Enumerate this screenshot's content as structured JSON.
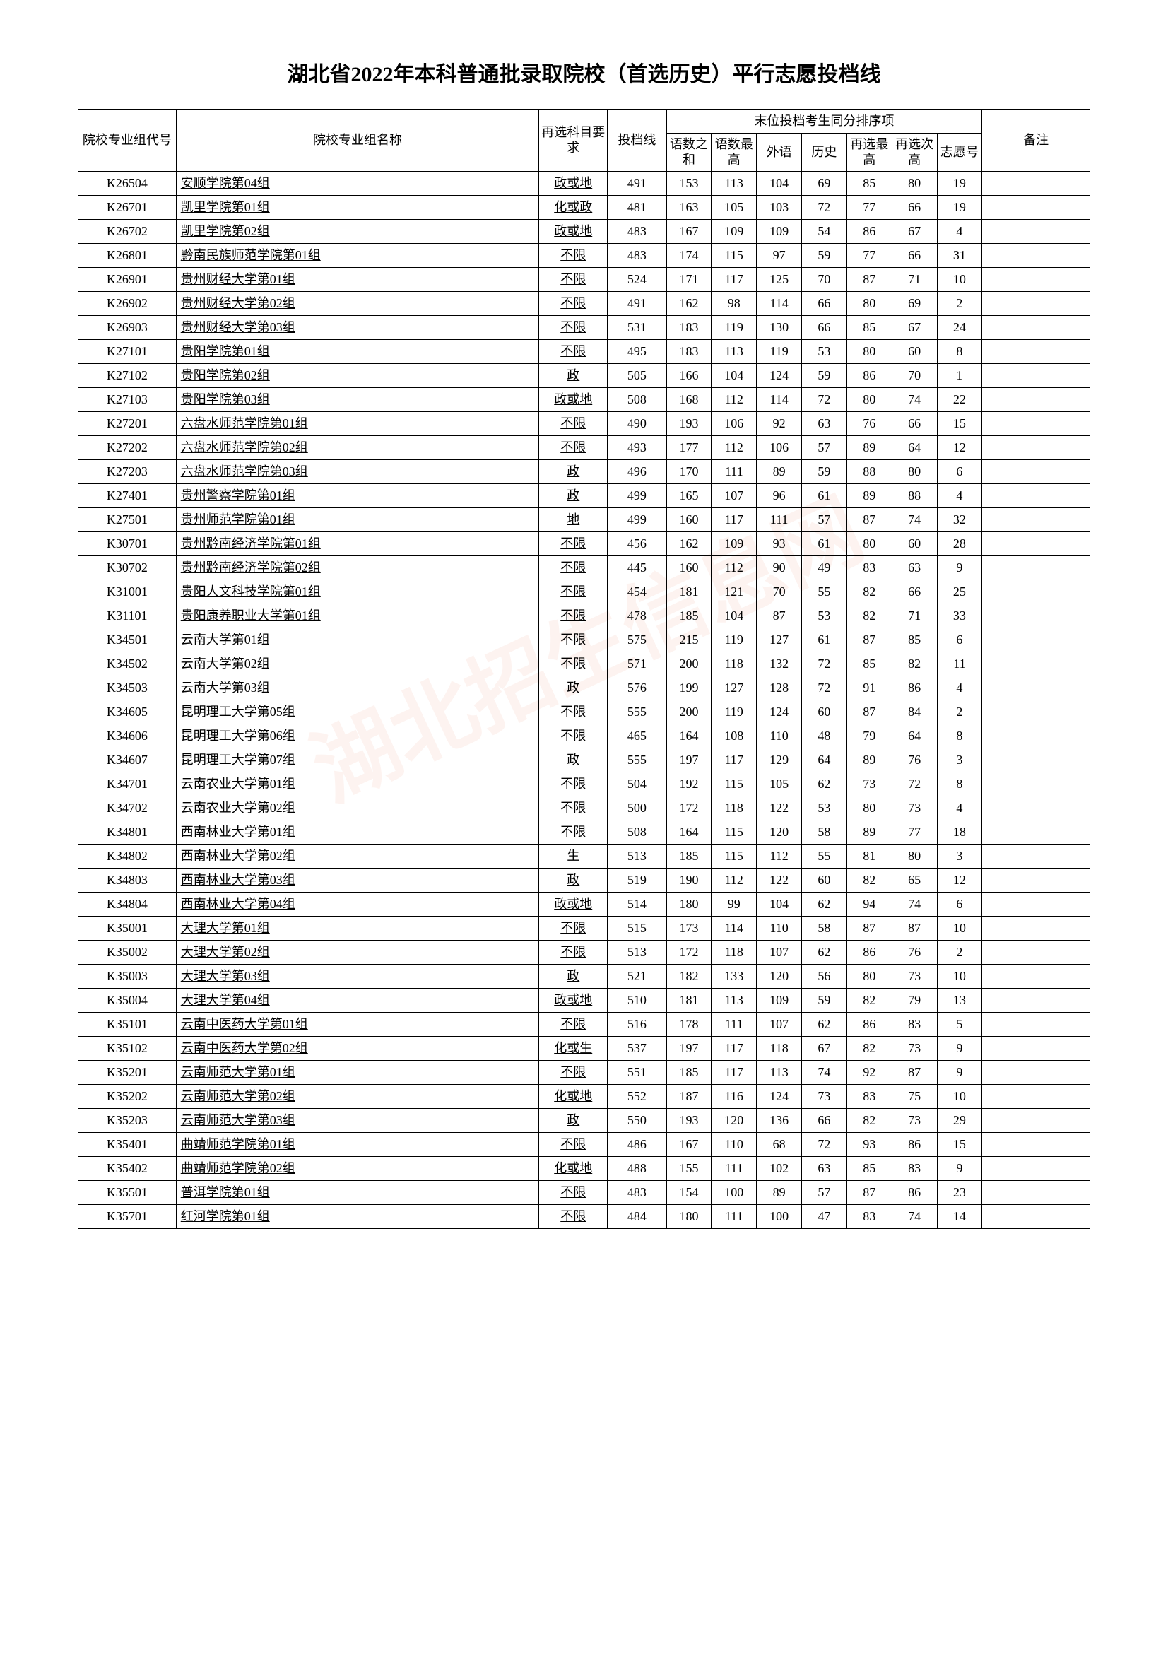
{
  "title": "湖北省2022年本科普通批录取院校（首选历史）平行志愿投档线",
  "watermark": "湖北招生信息网",
  "headers": {
    "code": "院校专业组代号",
    "name": "院校专业组名称",
    "req": "再选科目要求",
    "score": "投档线",
    "tiebreak_group": "末位投档考生同分排序项",
    "sub1": "语数之和",
    "sub2": "语数最高",
    "sub3": "外语",
    "sub4": "历史",
    "sub5": "再选最高",
    "sub6": "再选次高",
    "sub7": "志愿号",
    "note": "备注"
  },
  "rows": [
    {
      "code": "K26504",
      "name": "安顺学院第04组",
      "req": "政或地",
      "score": 491,
      "s1": 153,
      "s2": 113,
      "s3": 104,
      "s4": 69,
      "s5": 85,
      "s6": 80,
      "s7": 19,
      "note": ""
    },
    {
      "code": "K26701",
      "name": "凯里学院第01组",
      "req": "化或政",
      "score": 481,
      "s1": 163,
      "s2": 105,
      "s3": 103,
      "s4": 72,
      "s5": 77,
      "s6": 66,
      "s7": 19,
      "note": ""
    },
    {
      "code": "K26702",
      "name": "凯里学院第02组",
      "req": "政或地",
      "score": 483,
      "s1": 167,
      "s2": 109,
      "s3": 109,
      "s4": 54,
      "s5": 86,
      "s6": 67,
      "s7": 4,
      "note": ""
    },
    {
      "code": "K26801",
      "name": "黔南民族师范学院第01组",
      "req": "不限",
      "score": 483,
      "s1": 174,
      "s2": 115,
      "s3": 97,
      "s4": 59,
      "s5": 77,
      "s6": 66,
      "s7": 31,
      "note": ""
    },
    {
      "code": "K26901",
      "name": "贵州财经大学第01组",
      "req": "不限",
      "score": 524,
      "s1": 171,
      "s2": 117,
      "s3": 125,
      "s4": 70,
      "s5": 87,
      "s6": 71,
      "s7": 10,
      "note": ""
    },
    {
      "code": "K26902",
      "name": "贵州财经大学第02组",
      "req": "不限",
      "score": 491,
      "s1": 162,
      "s2": 98,
      "s3": 114,
      "s4": 66,
      "s5": 80,
      "s6": 69,
      "s7": 2,
      "note": ""
    },
    {
      "code": "K26903",
      "name": "贵州财经大学第03组",
      "req": "不限",
      "score": 531,
      "s1": 183,
      "s2": 119,
      "s3": 130,
      "s4": 66,
      "s5": 85,
      "s6": 67,
      "s7": 24,
      "note": ""
    },
    {
      "code": "K27101",
      "name": "贵阳学院第01组",
      "req": "不限",
      "score": 495,
      "s1": 183,
      "s2": 113,
      "s3": 119,
      "s4": 53,
      "s5": 80,
      "s6": 60,
      "s7": 8,
      "note": ""
    },
    {
      "code": "K27102",
      "name": "贵阳学院第02组",
      "req": "政",
      "score": 505,
      "s1": 166,
      "s2": 104,
      "s3": 124,
      "s4": 59,
      "s5": 86,
      "s6": 70,
      "s7": 1,
      "note": ""
    },
    {
      "code": "K27103",
      "name": "贵阳学院第03组",
      "req": "政或地",
      "score": 508,
      "s1": 168,
      "s2": 112,
      "s3": 114,
      "s4": 72,
      "s5": 80,
      "s6": 74,
      "s7": 22,
      "note": ""
    },
    {
      "code": "K27201",
      "name": "六盘水师范学院第01组",
      "req": "不限",
      "score": 490,
      "s1": 193,
      "s2": 106,
      "s3": 92,
      "s4": 63,
      "s5": 76,
      "s6": 66,
      "s7": 15,
      "note": ""
    },
    {
      "code": "K27202",
      "name": "六盘水师范学院第02组",
      "req": "不限",
      "score": 493,
      "s1": 177,
      "s2": 112,
      "s3": 106,
      "s4": 57,
      "s5": 89,
      "s6": 64,
      "s7": 12,
      "note": ""
    },
    {
      "code": "K27203",
      "name": "六盘水师范学院第03组",
      "req": "政",
      "score": 496,
      "s1": 170,
      "s2": 111,
      "s3": 89,
      "s4": 59,
      "s5": 88,
      "s6": 80,
      "s7": 6,
      "note": ""
    },
    {
      "code": "K27401",
      "name": "贵州警察学院第01组",
      "req": "政",
      "score": 499,
      "s1": 165,
      "s2": 107,
      "s3": 96,
      "s4": 61,
      "s5": 89,
      "s6": 88,
      "s7": 4,
      "note": ""
    },
    {
      "code": "K27501",
      "name": "贵州师范学院第01组",
      "req": "地",
      "score": 499,
      "s1": 160,
      "s2": 117,
      "s3": 111,
      "s4": 57,
      "s5": 87,
      "s6": 74,
      "s7": 32,
      "note": ""
    },
    {
      "code": "K30701",
      "name": "贵州黔南经济学院第01组",
      "req": "不限",
      "score": 456,
      "s1": 162,
      "s2": 109,
      "s3": 93,
      "s4": 61,
      "s5": 80,
      "s6": 60,
      "s7": 28,
      "note": ""
    },
    {
      "code": "K30702",
      "name": "贵州黔南经济学院第02组",
      "req": "不限",
      "score": 445,
      "s1": 160,
      "s2": 112,
      "s3": 90,
      "s4": 49,
      "s5": 83,
      "s6": 63,
      "s7": 9,
      "note": ""
    },
    {
      "code": "K31001",
      "name": "贵阳人文科技学院第01组",
      "req": "不限",
      "score": 454,
      "s1": 181,
      "s2": 121,
      "s3": 70,
      "s4": 55,
      "s5": 82,
      "s6": 66,
      "s7": 25,
      "note": ""
    },
    {
      "code": "K31101",
      "name": "贵阳康养职业大学第01组",
      "req": "不限",
      "score": 478,
      "s1": 185,
      "s2": 104,
      "s3": 87,
      "s4": 53,
      "s5": 82,
      "s6": 71,
      "s7": 33,
      "note": ""
    },
    {
      "code": "K34501",
      "name": "云南大学第01组",
      "req": "不限",
      "score": 575,
      "s1": 215,
      "s2": 119,
      "s3": 127,
      "s4": 61,
      "s5": 87,
      "s6": 85,
      "s7": 6,
      "note": ""
    },
    {
      "code": "K34502",
      "name": "云南大学第02组",
      "req": "不限",
      "score": 571,
      "s1": 200,
      "s2": 118,
      "s3": 132,
      "s4": 72,
      "s5": 85,
      "s6": 82,
      "s7": 11,
      "note": ""
    },
    {
      "code": "K34503",
      "name": "云南大学第03组",
      "req": "政",
      "score": 576,
      "s1": 199,
      "s2": 127,
      "s3": 128,
      "s4": 72,
      "s5": 91,
      "s6": 86,
      "s7": 4,
      "note": ""
    },
    {
      "code": "K34605",
      "name": "昆明理工大学第05组",
      "req": "不限",
      "score": 555,
      "s1": 200,
      "s2": 119,
      "s3": 124,
      "s4": 60,
      "s5": 87,
      "s6": 84,
      "s7": 2,
      "note": ""
    },
    {
      "code": "K34606",
      "name": "昆明理工大学第06组",
      "req": "不限",
      "score": 465,
      "s1": 164,
      "s2": 108,
      "s3": 110,
      "s4": 48,
      "s5": 79,
      "s6": 64,
      "s7": 8,
      "note": ""
    },
    {
      "code": "K34607",
      "name": "昆明理工大学第07组",
      "req": "政",
      "score": 555,
      "s1": 197,
      "s2": 117,
      "s3": 129,
      "s4": 64,
      "s5": 89,
      "s6": 76,
      "s7": 3,
      "note": ""
    },
    {
      "code": "K34701",
      "name": "云南农业大学第01组",
      "req": "不限",
      "score": 504,
      "s1": 192,
      "s2": 115,
      "s3": 105,
      "s4": 62,
      "s5": 73,
      "s6": 72,
      "s7": 8,
      "note": ""
    },
    {
      "code": "K34702",
      "name": "云南农业大学第02组",
      "req": "不限",
      "score": 500,
      "s1": 172,
      "s2": 118,
      "s3": 122,
      "s4": 53,
      "s5": 80,
      "s6": 73,
      "s7": 4,
      "note": ""
    },
    {
      "code": "K34801",
      "name": "西南林业大学第01组",
      "req": "不限",
      "score": 508,
      "s1": 164,
      "s2": 115,
      "s3": 120,
      "s4": 58,
      "s5": 89,
      "s6": 77,
      "s7": 18,
      "note": ""
    },
    {
      "code": "K34802",
      "name": "西南林业大学第02组",
      "req": "生",
      "score": 513,
      "s1": 185,
      "s2": 115,
      "s3": 112,
      "s4": 55,
      "s5": 81,
      "s6": 80,
      "s7": 3,
      "note": ""
    },
    {
      "code": "K34803",
      "name": "西南林业大学第03组",
      "req": "政",
      "score": 519,
      "s1": 190,
      "s2": 112,
      "s3": 122,
      "s4": 60,
      "s5": 82,
      "s6": 65,
      "s7": 12,
      "note": ""
    },
    {
      "code": "K34804",
      "name": "西南林业大学第04组",
      "req": "政或地",
      "score": 514,
      "s1": 180,
      "s2": 99,
      "s3": 104,
      "s4": 62,
      "s5": 94,
      "s6": 74,
      "s7": 6,
      "note": ""
    },
    {
      "code": "K35001",
      "name": "大理大学第01组",
      "req": "不限",
      "score": 515,
      "s1": 173,
      "s2": 114,
      "s3": 110,
      "s4": 58,
      "s5": 87,
      "s6": 87,
      "s7": 10,
      "note": ""
    },
    {
      "code": "K35002",
      "name": "大理大学第02组",
      "req": "不限",
      "score": 513,
      "s1": 172,
      "s2": 118,
      "s3": 107,
      "s4": 62,
      "s5": 86,
      "s6": 76,
      "s7": 2,
      "note": ""
    },
    {
      "code": "K35003",
      "name": "大理大学第03组",
      "req": "政",
      "score": 521,
      "s1": 182,
      "s2": 133,
      "s3": 120,
      "s4": 56,
      "s5": 80,
      "s6": 73,
      "s7": 10,
      "note": ""
    },
    {
      "code": "K35004",
      "name": "大理大学第04组",
      "req": "政或地",
      "score": 510,
      "s1": 181,
      "s2": 113,
      "s3": 109,
      "s4": 59,
      "s5": 82,
      "s6": 79,
      "s7": 13,
      "note": ""
    },
    {
      "code": "K35101",
      "name": "云南中医药大学第01组",
      "req": "不限",
      "score": 516,
      "s1": 178,
      "s2": 111,
      "s3": 107,
      "s4": 62,
      "s5": 86,
      "s6": 83,
      "s7": 5,
      "note": ""
    },
    {
      "code": "K35102",
      "name": "云南中医药大学第02组",
      "req": "化或生",
      "score": 537,
      "s1": 197,
      "s2": 117,
      "s3": 118,
      "s4": 67,
      "s5": 82,
      "s6": 73,
      "s7": 9,
      "note": ""
    },
    {
      "code": "K35201",
      "name": "云南师范大学第01组",
      "req": "不限",
      "score": 551,
      "s1": 185,
      "s2": 117,
      "s3": 113,
      "s4": 74,
      "s5": 92,
      "s6": 87,
      "s7": 9,
      "note": ""
    },
    {
      "code": "K35202",
      "name": "云南师范大学第02组",
      "req": "化或地",
      "score": 552,
      "s1": 187,
      "s2": 116,
      "s3": 124,
      "s4": 73,
      "s5": 83,
      "s6": 75,
      "s7": 10,
      "note": ""
    },
    {
      "code": "K35203",
      "name": "云南师范大学第03组",
      "req": "政",
      "score": 550,
      "s1": 193,
      "s2": 120,
      "s3": 136,
      "s4": 66,
      "s5": 82,
      "s6": 73,
      "s7": 29,
      "note": ""
    },
    {
      "code": "K35401",
      "name": "曲靖师范学院第01组",
      "req": "不限",
      "score": 486,
      "s1": 167,
      "s2": 110,
      "s3": 68,
      "s4": 72,
      "s5": 93,
      "s6": 86,
      "s7": 15,
      "note": ""
    },
    {
      "code": "K35402",
      "name": "曲靖师范学院第02组",
      "req": "化或地",
      "score": 488,
      "s1": 155,
      "s2": 111,
      "s3": 102,
      "s4": 63,
      "s5": 85,
      "s6": 83,
      "s7": 9,
      "note": ""
    },
    {
      "code": "K35501",
      "name": "普洱学院第01组",
      "req": "不限",
      "score": 483,
      "s1": 154,
      "s2": 100,
      "s3": 89,
      "s4": 57,
      "s5": 87,
      "s6": 86,
      "s7": 23,
      "note": ""
    },
    {
      "code": "K35701",
      "name": "红河学院第01组",
      "req": "不限",
      "score": 484,
      "s1": 180,
      "s2": 111,
      "s3": 100,
      "s4": 47,
      "s5": 83,
      "s6": 74,
      "s7": 14,
      "note": ""
    }
  ]
}
